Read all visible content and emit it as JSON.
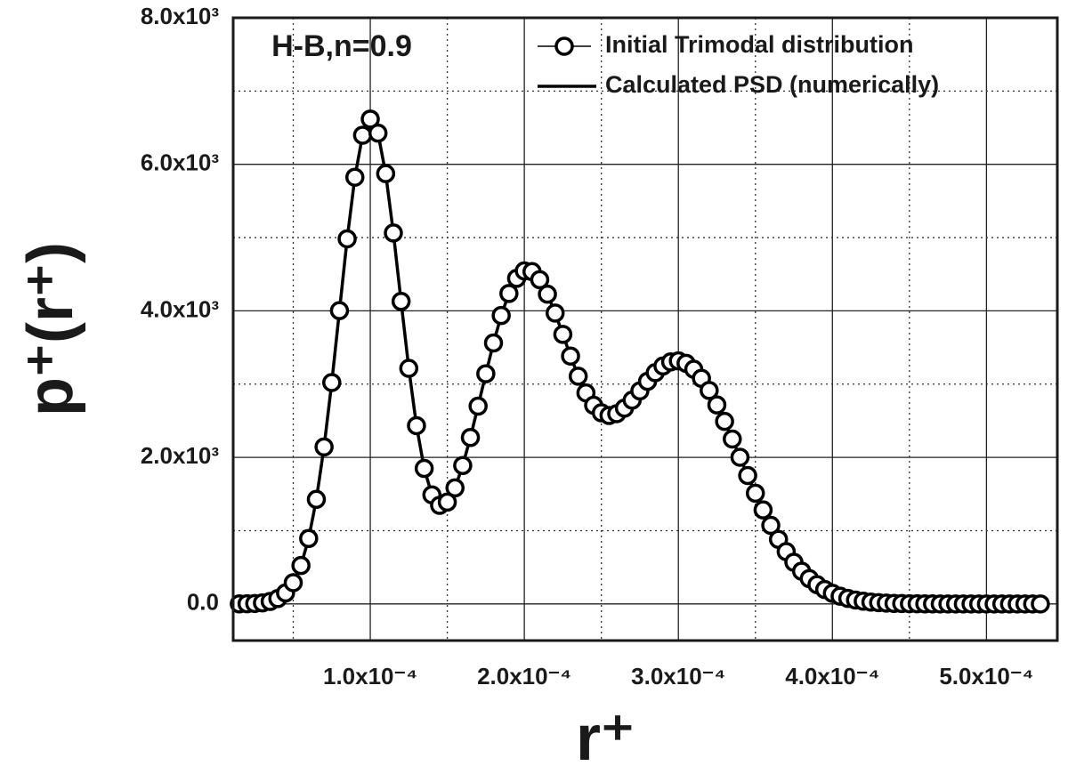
{
  "chart_data": {
    "type": "line",
    "annotation": "H-B,n=0.9",
    "xlabel": "r⁺",
    "ylabel": "p⁺(r⁺)",
    "x": [
      1.5e-05,
      2e-05,
      2.5e-05,
      3e-05,
      3.5e-05,
      4e-05,
      4.5e-05,
      5e-05,
      5.5e-05,
      6e-05,
      6.5e-05,
      7e-05,
      7.5e-05,
      8e-05,
      8.5e-05,
      9e-05,
      9.5e-05,
      0.0001,
      0.000105,
      0.00011,
      0.000115,
      0.00012,
      0.000125,
      0.00013,
      0.000135,
      0.00014,
      0.000145,
      0.00015,
      0.000155,
      0.00016,
      0.000165,
      0.00017,
      0.000175,
      0.00018,
      0.000185,
      0.00019,
      0.000195,
      0.0002,
      0.000205,
      0.00021,
      0.000215,
      0.00022,
      0.000225,
      0.00023,
      0.000235,
      0.00024,
      0.000245,
      0.00025,
      0.000255,
      0.00026,
      0.000265,
      0.00027,
      0.000275,
      0.00028,
      0.000285,
      0.00029,
      0.000295,
      0.0003,
      0.000305,
      0.00031,
      0.000315,
      0.00032,
      0.000325,
      0.00033,
      0.000335,
      0.00034,
      0.000345,
      0.00035,
      0.000355,
      0.00036,
      0.000365,
      0.00037,
      0.000375,
      0.00038,
      0.000385,
      0.00039,
      0.000395,
      0.0004,
      0.000405,
      0.00041,
      0.000415,
      0.00042,
      0.000425,
      0.00043,
      0.000435,
      0.00044,
      0.000445,
      0.00045,
      0.000455,
      0.00046,
      0.000465,
      0.00047,
      0.000475,
      0.00048,
      0.000485,
      0.00049,
      0.000495,
      0.0005,
      0.000505,
      0.00051,
      0.000515,
      0.00052,
      0.000525,
      0.00053,
      0.000535
    ],
    "series": [
      {
        "name": "Initial Trimodal distribution",
        "color": "#000000",
        "style": "markers",
        "values": [
          1,
          2,
          6,
          14,
          34,
          73,
          150,
          290,
          525,
          893,
          1427,
          2143,
          3022,
          4003,
          4983,
          5824,
          6397,
          6617,
          6426,
          5873,
          5063,
          4129,
          3215,
          2433,
          1849,
          1489,
          1346,
          1390,
          1584,
          1889,
          2272,
          2700,
          3141,
          3562,
          3937,
          4237,
          4444,
          4545,
          4536,
          4425,
          4228,
          3970,
          3679,
          3383,
          3108,
          2881,
          2712,
          2608,
          2572,
          2597,
          2672,
          2781,
          2908,
          3038,
          3156,
          3247,
          3303,
          3317,
          3284,
          3203,
          3079,
          2914,
          2716,
          2491,
          2251,
          2002,
          1753,
          1511,
          1283,
          1072,
          881,
          714,
          569,
          447,
          345,
          263,
          197,
          145,
          105,
          75,
          53,
          37,
          25,
          17,
          11,
          7,
          5,
          3,
          2,
          1,
          1,
          0,
          0,
          0,
          0,
          0,
          0,
          0,
          0,
          0,
          0,
          0,
          0,
          0,
          0
        ]
      },
      {
        "name": "Calculated PSD (numerically)",
        "color": "#000000",
        "style": "line",
        "values": [
          1,
          2,
          6,
          14,
          34,
          73,
          150,
          290,
          525,
          893,
          1427,
          2143,
          3022,
          4003,
          4983,
          5824,
          6397,
          6617,
          6426,
          5873,
          5063,
          4129,
          3215,
          2433,
          1849,
          1489,
          1346,
          1390,
          1584,
          1889,
          2272,
          2700,
          3141,
          3562,
          3937,
          4237,
          4444,
          4545,
          4536,
          4425,
          4228,
          3970,
          3679,
          3383,
          3108,
          2881,
          2712,
          2608,
          2572,
          2597,
          2672,
          2781,
          2908,
          3038,
          3156,
          3247,
          3303,
          3317,
          3284,
          3203,
          3079,
          2914,
          2716,
          2491,
          2251,
          2002,
          1753,
          1511,
          1283,
          1072,
          881,
          714,
          569,
          447,
          345,
          263,
          197,
          145,
          105,
          75,
          53,
          37,
          25,
          17,
          11,
          7,
          5,
          3,
          2,
          1,
          1,
          0,
          0,
          0,
          0,
          0,
          0,
          0,
          0,
          0,
          0,
          0,
          0,
          0,
          0
        ]
      }
    ],
    "xlim": [
      1.1e-05,
      0.000546
    ],
    "ylim": [
      -500,
      8000
    ],
    "xticks": [
      {
        "value": 0.0001,
        "label": "1.0x10⁻⁴"
      },
      {
        "value": 0.0002,
        "label": "2.0x10⁻⁴"
      },
      {
        "value": 0.0003,
        "label": "3.0x10⁻⁴"
      },
      {
        "value": 0.0004,
        "label": "4.0x10⁻⁴"
      },
      {
        "value": 0.0005,
        "label": "5.0x10⁻⁴"
      }
    ],
    "yticks": [
      {
        "value": 0,
        "label": "0.0"
      },
      {
        "value": 2000,
        "label": "2.0x10³"
      },
      {
        "value": 4000,
        "label": "4.0x10³"
      },
      {
        "value": 6000,
        "label": "6.0x10³"
      },
      {
        "value": 8000,
        "label": "8.0x10³"
      }
    ],
    "minor_xticks": [
      5e-05,
      0.00015,
      0.00025,
      0.00035,
      0.00045
    ],
    "minor_yticks": [
      1000,
      3000,
      5000,
      7000
    ],
    "grid": true,
    "legend": "upper right"
  }
}
